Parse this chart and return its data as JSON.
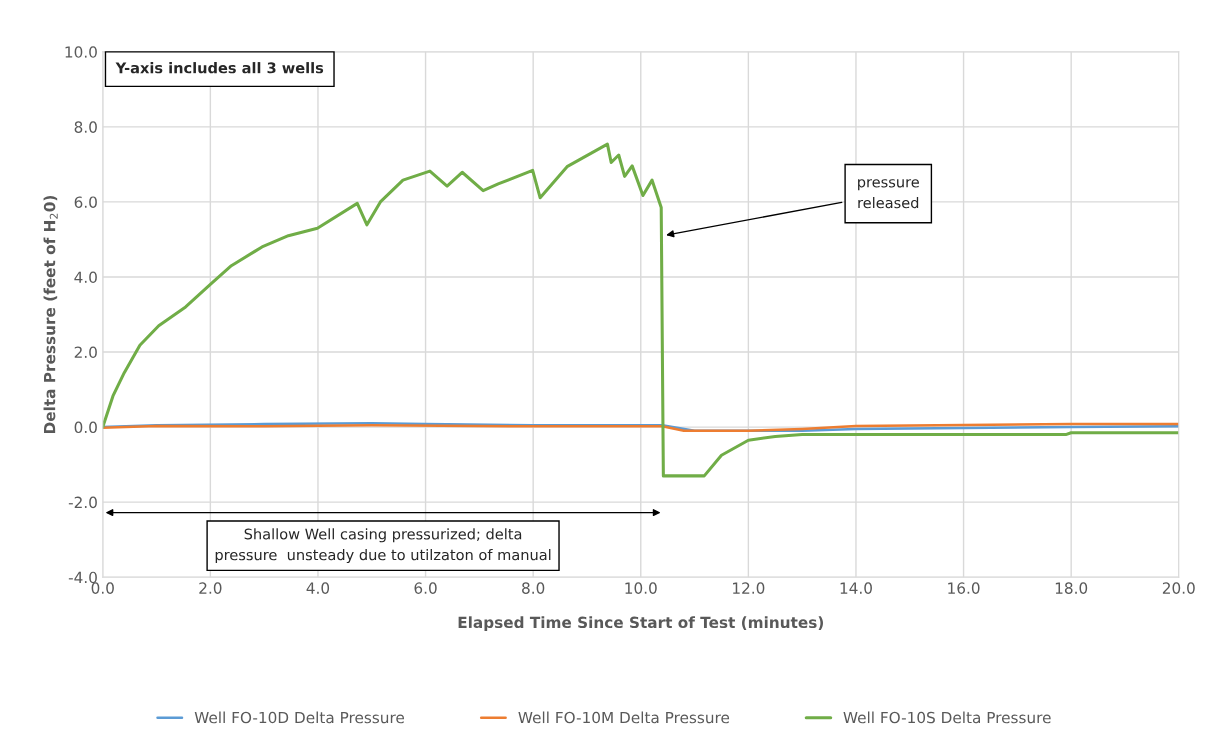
{
  "chart_data": {
    "type": "line",
    "xlabel": "Elapsed Time Since Start of Test (minutes)",
    "ylabel": "Delta Pressure (feet of H$_{2}$0)",
    "xlim": [
      0,
      20
    ],
    "xticks": [
      {
        "value": 0,
        "label": "0.0"
      },
      {
        "value": 2,
        "label": "2.0"
      },
      {
        "value": 4,
        "label": "4.0"
      },
      {
        "value": 6,
        "label": "6.0"
      },
      {
        "value": 8,
        "label": "8.0"
      },
      {
        "value": 10,
        "label": "10.0"
      },
      {
        "value": 12,
        "label": "12.0"
      },
      {
        "value": 14,
        "label": "14.0"
      },
      {
        "value": 16,
        "label": "16.0"
      },
      {
        "value": 18,
        "label": "18.0"
      },
      {
        "value": 20,
        "label": "20.0"
      }
    ],
    "ylim": [
      -4,
      10
    ],
    "yticks": [
      {
        "value": -4,
        "label": "-4.0"
      },
      {
        "value": -2,
        "label": "-2.0"
      },
      {
        "value": 0,
        "label": "0.0"
      },
      {
        "value": 2,
        "label": "2.0"
      },
      {
        "value": 4,
        "label": "4.0"
      },
      {
        "value": 6,
        "label": "6.0"
      },
      {
        "value": 8,
        "label": "8.0"
      },
      {
        "value": 10,
        "label": "10.0"
      }
    ],
    "grid": true,
    "legend": "bottom",
    "series": [
      {
        "name": "Well FO-10D Delta Pressure",
        "color": "#5b9bd5",
        "x": [
          0,
          1,
          3,
          5,
          6,
          8,
          10.4,
          11,
          12,
          13,
          14,
          18,
          20
        ],
        "values": [
          0,
          0.05,
          0.08,
          0.1,
          0.08,
          0.05,
          0.05,
          -0.1,
          -0.1,
          -0.1,
          -0.05,
          0,
          0.02
        ]
      },
      {
        "name": "Well FO-10M Delta Pressure",
        "color": "#ed7d31",
        "x": [
          0,
          1,
          3,
          5,
          8,
          10.4,
          10.8,
          12,
          13,
          14,
          18,
          20
        ],
        "values": [
          -0.02,
          0.03,
          0.02,
          0.05,
          0.02,
          0.02,
          -0.1,
          -0.1,
          -0.05,
          0.03,
          0.08,
          0.08
        ]
      },
      {
        "name": "Well FO-10S Delta Pressure",
        "color": "#70ad47",
        "x": [
          0,
          0.19,
          0.4,
          0.69,
          1.04,
          1.54,
          2.0,
          2.39,
          2.96,
          3.45,
          3.99,
          4.73,
          4.91,
          5.16,
          5.58,
          6.08,
          6.4,
          6.68,
          7.07,
          7.35,
          7.99,
          8.13,
          8.63,
          9.38,
          9.45,
          9.59,
          9.7,
          9.84,
          10.04,
          10.21,
          10.38,
          10.42,
          11.18,
          11.5,
          12.0,
          12.5,
          13.0,
          14.0,
          17.9,
          18.0,
          20.0
        ],
        "values": [
          0,
          0.83,
          1.45,
          2.18,
          2.7,
          3.2,
          3.8,
          4.3,
          4.8,
          5.1,
          5.3,
          5.96,
          5.39,
          6.0,
          6.58,
          6.82,
          6.42,
          6.79,
          6.3,
          6.48,
          6.84,
          6.11,
          6.94,
          7.54,
          7.05,
          7.25,
          6.68,
          6.96,
          6.17,
          6.58,
          5.85,
          -1.3,
          -1.3,
          -0.75,
          -0.35,
          -0.25,
          -0.2,
          -0.2,
          -0.2,
          -0.15,
          -0.15
        ]
      }
    ],
    "annotations": [
      "Y-axis includes all 3 wells",
      {
        "text": "pressure\nreleased",
        "x": 10.42,
        "y": 5.1
      },
      "Shallow Well casing pressurized; delta\npressure  unsteady due to utilzaton of manual"
    ]
  }
}
